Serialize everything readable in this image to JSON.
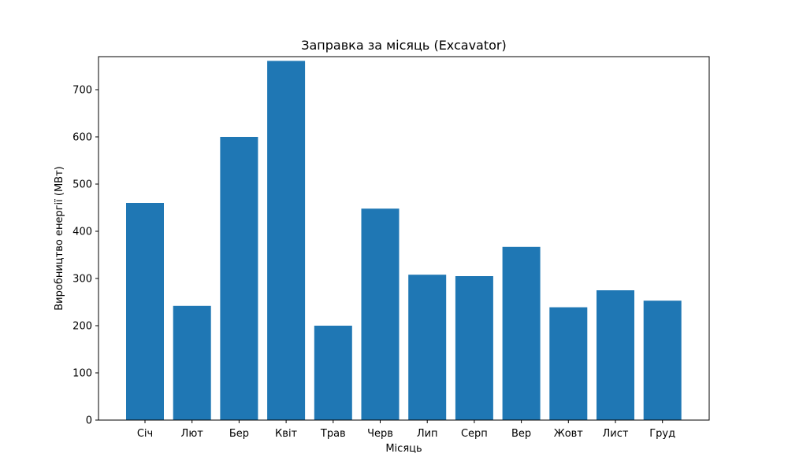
{
  "chart_data": {
    "type": "bar",
    "title": "Заправка за місяць (Excavator)",
    "xlabel": "Місяць",
    "ylabel": "Виробництво енергії (МВт)",
    "categories": [
      "Січ",
      "Лют",
      "Бер",
      "Квіт",
      "Трав",
      "Черв",
      "Лип",
      "Серп",
      "Вер",
      "Жовт",
      "Лист",
      "Груд"
    ],
    "values": [
      460,
      242,
      600,
      761,
      200,
      448,
      308,
      305,
      367,
      239,
      275,
      253
    ],
    "ylim": [
      0,
      800
    ],
    "yticks": [
      0,
      100,
      200,
      300,
      400,
      500,
      600,
      700
    ],
    "grid": false,
    "legend": "none",
    "colors": {
      "bar": "#1f77b4",
      "axis": "#000000",
      "background": "#ffffff"
    }
  }
}
